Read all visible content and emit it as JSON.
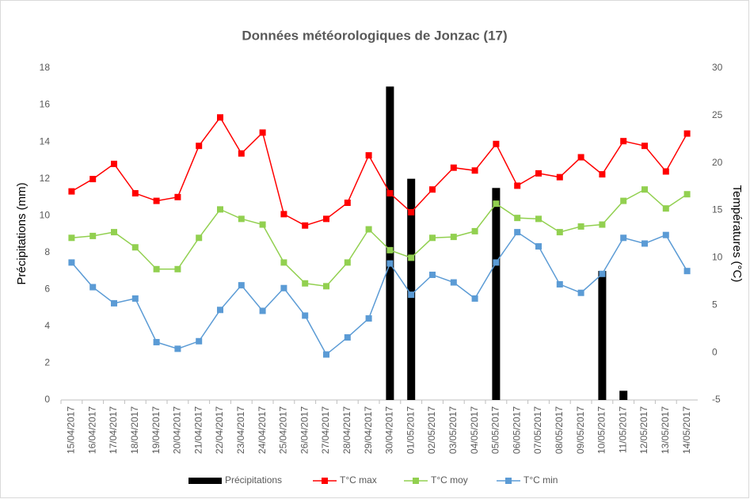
{
  "chart_data": {
    "type": "bar-line",
    "title": "Données météorologiques de Jonzac (17)",
    "ylabel": "Précipitations (mm)",
    "y2label": "Températures (°C)",
    "categories": [
      "15/04/2017",
      "16/04/2017",
      "17/04/2017",
      "18/04/2017",
      "19/04/2017",
      "20/04/2017",
      "21/04/2017",
      "22/04/2017",
      "23/04/2017",
      "24/04/2017",
      "25/04/2017",
      "26/04/2017",
      "27/04/2017",
      "28/04/2017",
      "29/04/2017",
      "30/04/2017",
      "01/05/2017",
      "02/05/2017",
      "03/05/2017",
      "04/05/2017",
      "05/05/2017",
      "06/05/2017",
      "07/05/2017",
      "08/05/2017",
      "09/05/2017",
      "10/05/2017",
      "11/05/2017",
      "12/05/2017",
      "13/05/2017",
      "14/05/2017"
    ],
    "ylim": [
      0,
      18
    ],
    "yticks": [
      0,
      2,
      4,
      6,
      8,
      10,
      12,
      14,
      16,
      18
    ],
    "y2lim": [
      -5,
      30
    ],
    "y2ticks": [
      -5,
      0,
      5,
      10,
      15,
      20,
      25,
      30
    ],
    "grid": false,
    "series": [
      {
        "name": "Précipitations",
        "type": "bar",
        "axis": "y",
        "color": "#000000",
        "values": [
          0,
          0,
          0,
          0,
          0,
          0,
          0,
          0,
          0,
          0,
          0,
          0,
          0,
          0,
          0,
          17,
          12,
          0,
          0,
          0,
          11.5,
          0,
          0,
          0,
          0,
          7,
          0.5,
          0,
          0,
          0
        ]
      },
      {
        "name": "T°C max",
        "type": "line",
        "axis": "y2",
        "color": "#ff0000",
        "values": [
          17.0,
          18.3,
          19.9,
          16.8,
          16.0,
          16.4,
          21.8,
          24.8,
          21.0,
          23.2,
          14.6,
          13.4,
          14.1,
          15.8,
          20.8,
          16.8,
          14.8,
          17.2,
          19.5,
          19.2,
          22.0,
          17.6,
          18.9,
          18.5,
          20.6,
          18.8,
          22.3,
          21.8,
          19.1,
          23.1
        ]
      },
      {
        "name": "T°C moy",
        "type": "line",
        "axis": "y2",
        "color": "#92d050",
        "values": [
          12.1,
          12.3,
          12.7,
          11.1,
          8.8,
          8.8,
          12.1,
          15.1,
          14.1,
          13.5,
          9.5,
          7.3,
          7.0,
          9.5,
          13.0,
          10.8,
          10.0,
          12.1,
          12.2,
          12.8,
          15.7,
          14.2,
          14.1,
          12.7,
          13.3,
          13.5,
          16.0,
          17.2,
          15.2,
          16.7
        ]
      },
      {
        "name": "T°C min",
        "type": "line",
        "axis": "y2",
        "color": "#5b9bd5",
        "values": [
          9.5,
          6.9,
          5.2,
          5.7,
          1.1,
          0.4,
          1.2,
          4.5,
          7.1,
          4.4,
          6.8,
          3.9,
          -0.2,
          1.6,
          3.6,
          9.4,
          6.1,
          8.2,
          7.4,
          5.7,
          9.5,
          12.7,
          11.2,
          7.2,
          6.3,
          8.3,
          12.1,
          11.5,
          12.4,
          8.6
        ]
      }
    ]
  }
}
